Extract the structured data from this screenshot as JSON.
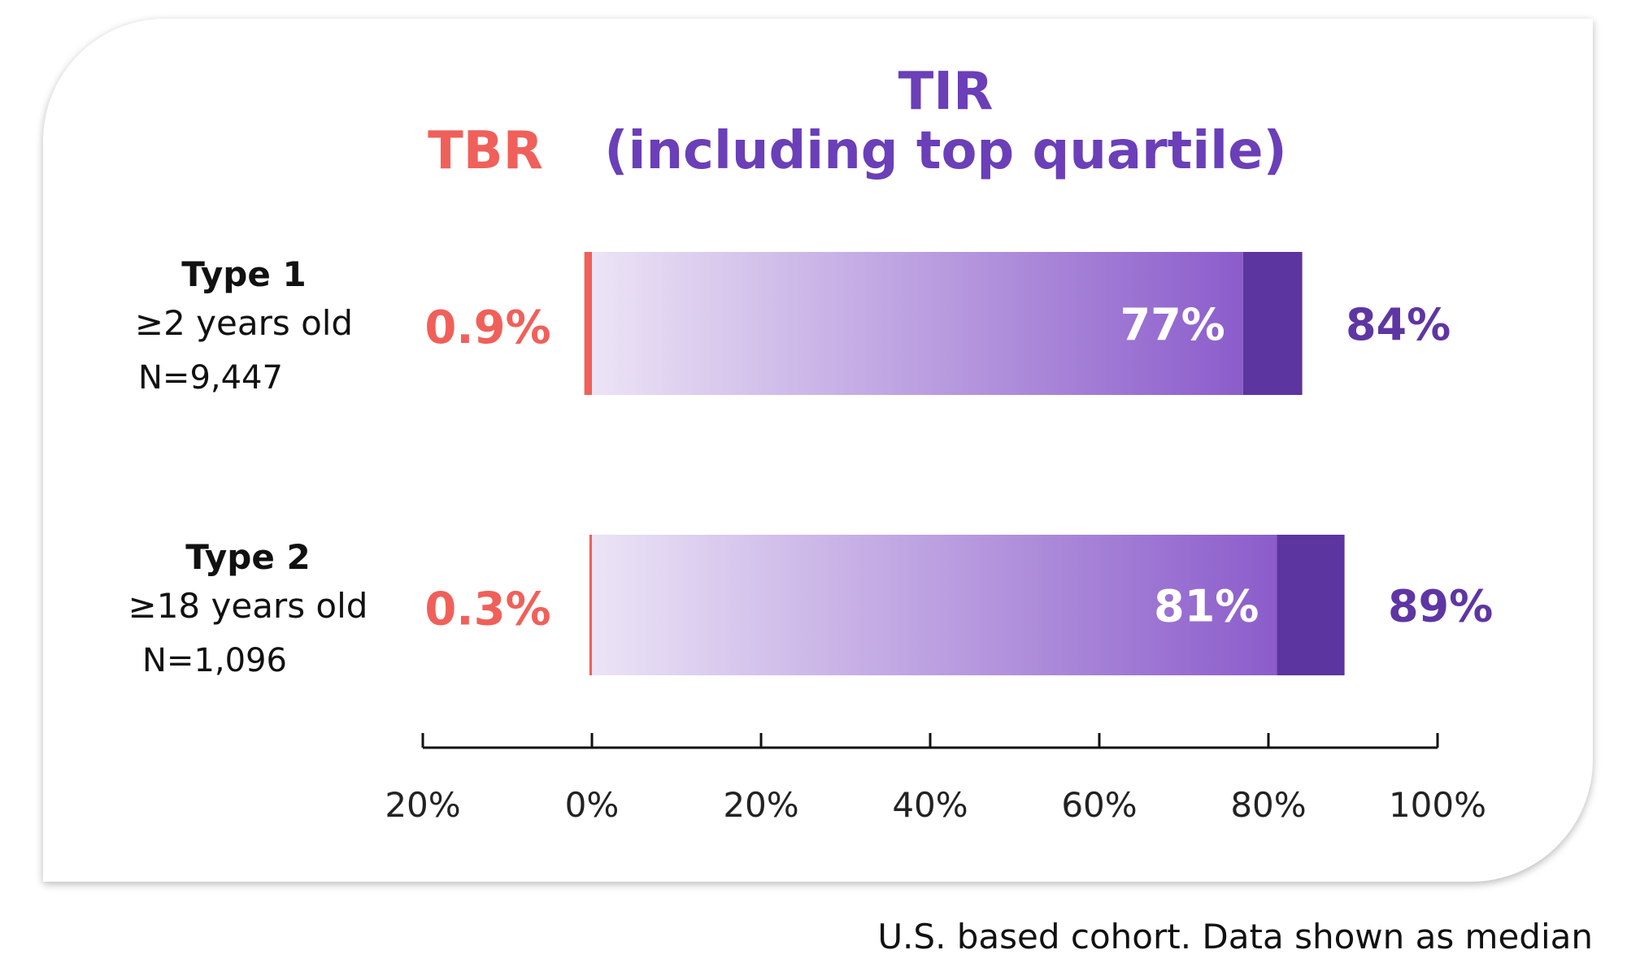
{
  "chart_data": {
    "type": "bar",
    "orientation": "horizontal",
    "headers": {
      "tbr": "TBR",
      "tir_line1": "TIR",
      "tir_line2": "(including top quartile)"
    },
    "groups": [
      {
        "name": "Type 1",
        "subtitle": "≥2 years old",
        "n": "N=9,447",
        "tbr": 0.9,
        "tbr_label": "0.9%",
        "tir": 77,
        "tir_label": "77%",
        "tir_top_quartile": 84,
        "tir_top_quartile_label": "84%"
      },
      {
        "name": "Type 2",
        "subtitle": "≥18 years old",
        "n": "N=1,096",
        "tbr": 0.3,
        "tbr_label": "0.3%",
        "tir": 81,
        "tir_label": "81%",
        "tir_top_quartile": 89,
        "tir_top_quartile_label": "89%"
      }
    ],
    "xlim": [
      -20,
      100
    ],
    "xticks": [
      {
        "value": -20,
        "label": "20%"
      },
      {
        "value": 0,
        "label": "0%"
      },
      {
        "value": 20,
        "label": "20%"
      },
      {
        "value": 40,
        "label": "40%"
      },
      {
        "value": 60,
        "label": "60%"
      },
      {
        "value": 80,
        "label": "80%"
      },
      {
        "value": 100,
        "label": "100%"
      }
    ]
  },
  "colors": {
    "tbr": "#f0605a",
    "tir_header": "#6a3fb8",
    "gradient_start": "#ece4f6",
    "gradient_end": "#8b5ccb",
    "top_quartile": "#5c35a0",
    "value_purple": "#5e36a3"
  },
  "footnote": "U.S. based cohort. Data shown as median"
}
